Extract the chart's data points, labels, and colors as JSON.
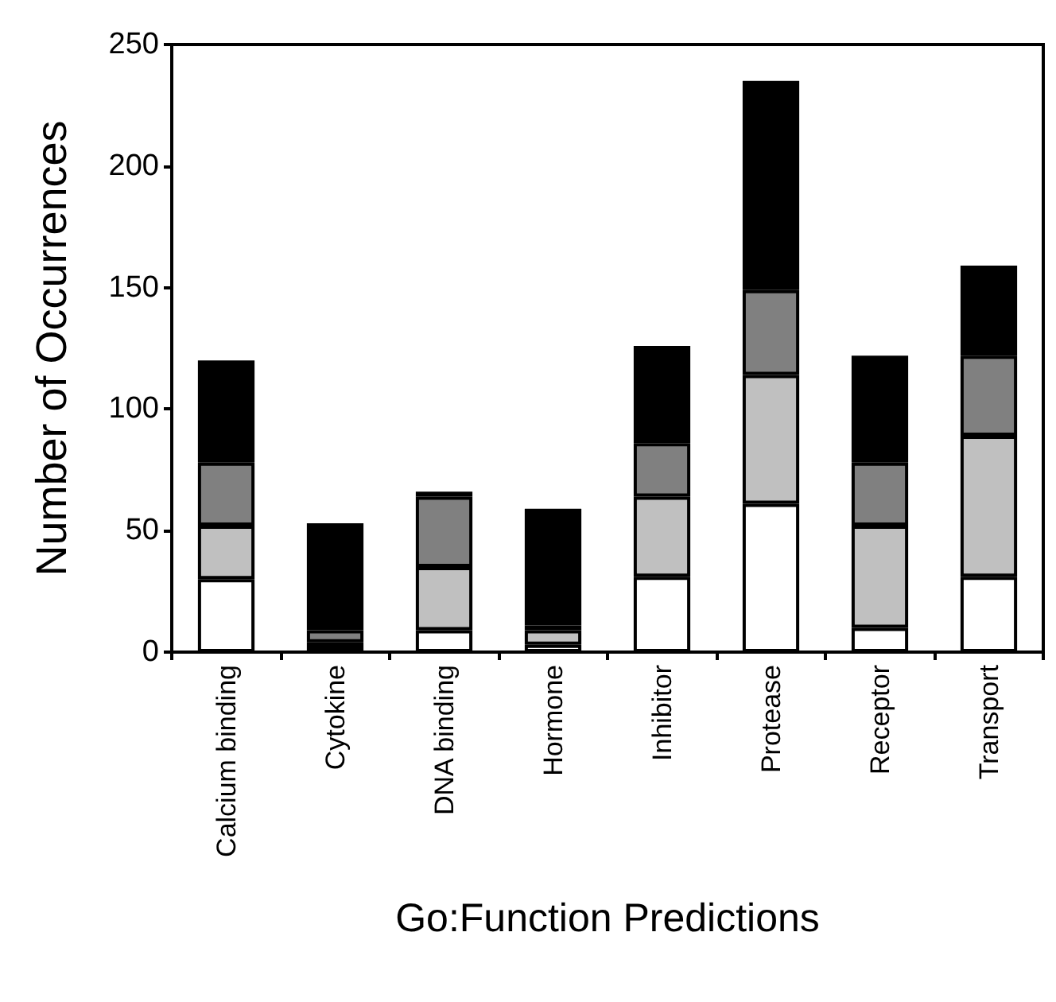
{
  "chart_data": {
    "type": "bar",
    "stacked": true,
    "xlabel": "Go:Function Predictions",
    "ylabel": "Number of Occurrences",
    "categories": [
      "Calcium binding",
      "Cytokine",
      "DNA binding",
      "Hormone",
      "Inhibitor",
      "Protease",
      "Receptor",
      "Transport"
    ],
    "series": [
      {
        "color": "#ffffff",
        "values": [
          30,
          2,
          9,
          3,
          31,
          61,
          10,
          31
        ]
      },
      {
        "color": "#c0c0c0",
        "values": [
          22,
          2,
          26,
          6,
          33,
          53,
          42,
          58
        ]
      },
      {
        "color": "#808080",
        "values": [
          26,
          5,
          29,
          2,
          22,
          35,
          26,
          33
        ]
      },
      {
        "color": "#000000",
        "values": [
          42,
          44,
          2,
          48,
          40,
          86,
          44,
          37
        ]
      }
    ],
    "ylim": [
      0,
      250
    ],
    "yticks": [
      0,
      50,
      100,
      150,
      200,
      250
    ]
  }
}
